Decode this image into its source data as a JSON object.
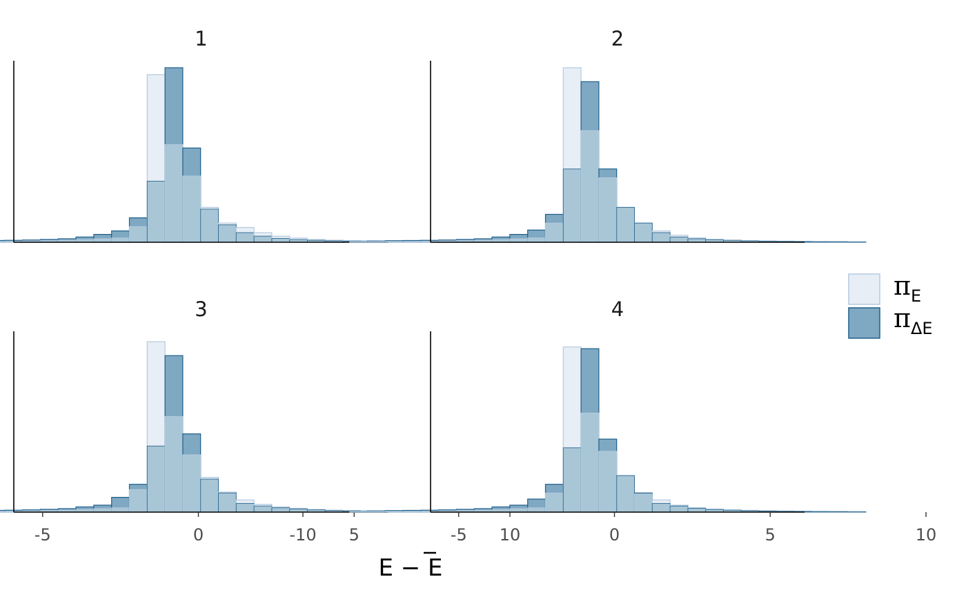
{
  "chart_data": {
    "type": "bar",
    "facets": [
      {
        "title": "1",
        "series": [
          {
            "name": "pi_E",
            "values": [
              0.4,
              0.4,
              0.5,
              0.5,
              0.6,
              0.8,
              1.0,
              1.2,
              1.5,
              2.0,
              2.5,
              9.0,
              96.0,
              56.0,
              38.0,
              20.0,
              11.0,
              8.5,
              5.5,
              3.5,
              2.4,
              1.6,
              1.2,
              1.0,
              0.8,
              0.6,
              0.5,
              0.4,
              0.3
            ]
          },
          {
            "name": "pi_dE",
            "values": [
              0.5,
              0.7,
              0.9,
              1.0,
              1.1,
              1.3,
              1.6,
              2.0,
              3.0,
              4.5,
              6.5,
              14.0,
              35.0,
              100.0,
              54.0,
              19.0,
              10.0,
              5.5,
              3.5,
              2.2,
              1.5,
              1.1,
              0.8,
              0.6,
              0.5,
              0.4,
              0.3,
              0.3,
              0.2
            ]
          }
        ]
      },
      {
        "title": "2",
        "series": [
          {
            "name": "pi_E",
            "values": [
              0.4,
              0.4,
              0.5,
              0.5,
              0.6,
              0.8,
              1.0,
              1.2,
              1.5,
              2.0,
              2.5,
              11.0,
              100.0,
              64.0,
              37.0,
              20.0,
              11.0,
              6.5,
              4.0,
              2.5,
              1.6,
              1.2,
              0.9,
              0.7,
              0.6,
              0.5,
              0.4,
              0.3,
              0.2
            ]
          },
          {
            "name": "pi_dE",
            "values": [
              0.5,
              0.7,
              0.9,
              1.0,
              1.1,
              1.3,
              1.6,
              2.0,
              3.0,
              4.5,
              7.0,
              16.0,
              42.0,
              92.0,
              42.0,
              20.0,
              11.0,
              5.5,
              3.0,
              2.0,
              1.5,
              1.1,
              0.8,
              0.6,
              0.5,
              0.4,
              0.3,
              0.3,
              0.2
            ]
          }
        ]
      },
      {
        "title": "3",
        "series": [
          {
            "name": "pi_E",
            "values": [
              0.4,
              0.4,
              0.5,
              0.5,
              0.6,
              0.8,
              1.0,
              1.2,
              1.5,
              2.0,
              2.5,
              13.0,
              98.0,
              55.0,
              33.0,
              20.0,
              11.5,
              7.0,
              4.5,
              3.0,
              2.2,
              1.5,
              1.1,
              0.9,
              0.7,
              0.6,
              0.5,
              0.4,
              0.3
            ]
          },
          {
            "name": "pi_dE",
            "values": [
              0.5,
              0.7,
              0.9,
              1.0,
              1.1,
              1.3,
              1.6,
              2.0,
              3.0,
              4.0,
              8.5,
              16.0,
              38.0,
              90.0,
              45.0,
              19.0,
              11.0,
              5.0,
              3.5,
              2.5,
              1.8,
              1.3,
              0.9,
              0.7,
              0.5,
              0.4,
              0.3,
              0.3,
              0.2
            ]
          }
        ]
      },
      {
        "title": "4",
        "series": [
          {
            "name": "pi_E",
            "values": [
              0.4,
              0.4,
              0.5,
              0.5,
              0.6,
              0.8,
              1.0,
              1.2,
              1.5,
              2.0,
              2.5,
              11.0,
              95.0,
              57.0,
              35.0,
              21.0,
              10.5,
              7.0,
              4.0,
              2.5,
              1.7,
              1.3,
              1.0,
              0.8,
              0.6,
              0.5,
              0.4,
              0.3,
              0.2
            ]
          },
          {
            "name": "pi_dE",
            "values": [
              0.5,
              0.7,
              0.9,
              1.0,
              1.1,
              1.3,
              1.6,
              2.0,
              3.0,
              4.0,
              7.5,
              16.0,
              37.0,
              94.0,
              42.0,
              21.0,
              11.0,
              5.0,
              3.5,
              2.2,
              1.5,
              1.1,
              0.8,
              0.6,
              0.5,
              0.4,
              0.3,
              0.3,
              0.2
            ]
          }
        ]
      }
    ],
    "bin_start": -8.5,
    "bin_width": 0.5714,
    "xlim": [
      -12,
      12
    ],
    "ylim": [
      0,
      104
    ],
    "xticks": [
      -10,
      -5,
      0,
      5,
      10
    ],
    "xtick_labels": [
      "-10",
      "-5",
      "0",
      "5",
      "10"
    ],
    "xlabel": "E − E",
    "legend": {
      "position": "right",
      "entries": [
        {
          "symbol": "π",
          "subscript": "E",
          "fill": "#e8eef6",
          "stroke": "#b4cadf"
        },
        {
          "symbol": "π",
          "subscript": "ΔE",
          "fill": "#7fa8c2",
          "stroke": "#1f5f8b"
        }
      ]
    },
    "colors": {
      "pi_E_fill": "#e8eef6",
      "pi_E_stroke": "#b4cadf",
      "pi_dE_fill": "#7fa8c2",
      "pi_dE_stroke": "#1f5f8b",
      "overlap_fill": "#a9c6d6"
    }
  }
}
